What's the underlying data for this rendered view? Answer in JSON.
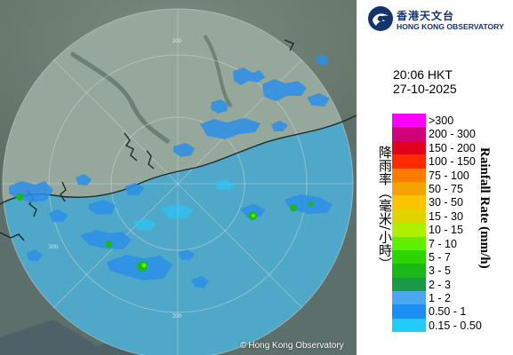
{
  "map": {
    "copyright": "Hong Kong Observatory",
    "ring_label": "200"
  },
  "logo": {
    "chinese": "香港天文台",
    "english": "HONG KONG OBSERVATORY"
  },
  "timestamp": {
    "time": "20:06 HKT",
    "date": "27-10-2025"
  },
  "legend": {
    "title_chinese": "降雨率（毫米/小時）",
    "title_english": "Rainfall Rate (mm/h)",
    "items": [
      {
        "label": ">300",
        "color": "#ff00ff"
      },
      {
        "label": "200 - 300",
        "color": "#d0007a"
      },
      {
        "label": "150 - 200",
        "color": "#e3001b"
      },
      {
        "label": "100 - 150",
        "color": "#ff2a00"
      },
      {
        "label": "75 - 100",
        "color": "#ff7a00"
      },
      {
        "label": "50 - 75",
        "color": "#f5a300"
      },
      {
        "label": "30 - 50",
        "color": "#fcc400"
      },
      {
        "label": "15 - 30",
        "color": "#e1d300"
      },
      {
        "label": "10 - 15",
        "color": "#aef000"
      },
      {
        "label": "7 - 10",
        "color": "#5df000"
      },
      {
        "label": "5 - 7",
        "color": "#2ed400"
      },
      {
        "label": "3 - 5",
        "color": "#1cb81a"
      },
      {
        "label": "2 - 3",
        "color": "#1a9a46"
      },
      {
        "label": "1 - 2",
        "color": "#4aa8f0"
      },
      {
        "label": "0.50 - 1",
        "color": "#1e8ff2"
      },
      {
        "label": "0.15 - 0.50",
        "color": "#22ccff"
      }
    ]
  }
}
